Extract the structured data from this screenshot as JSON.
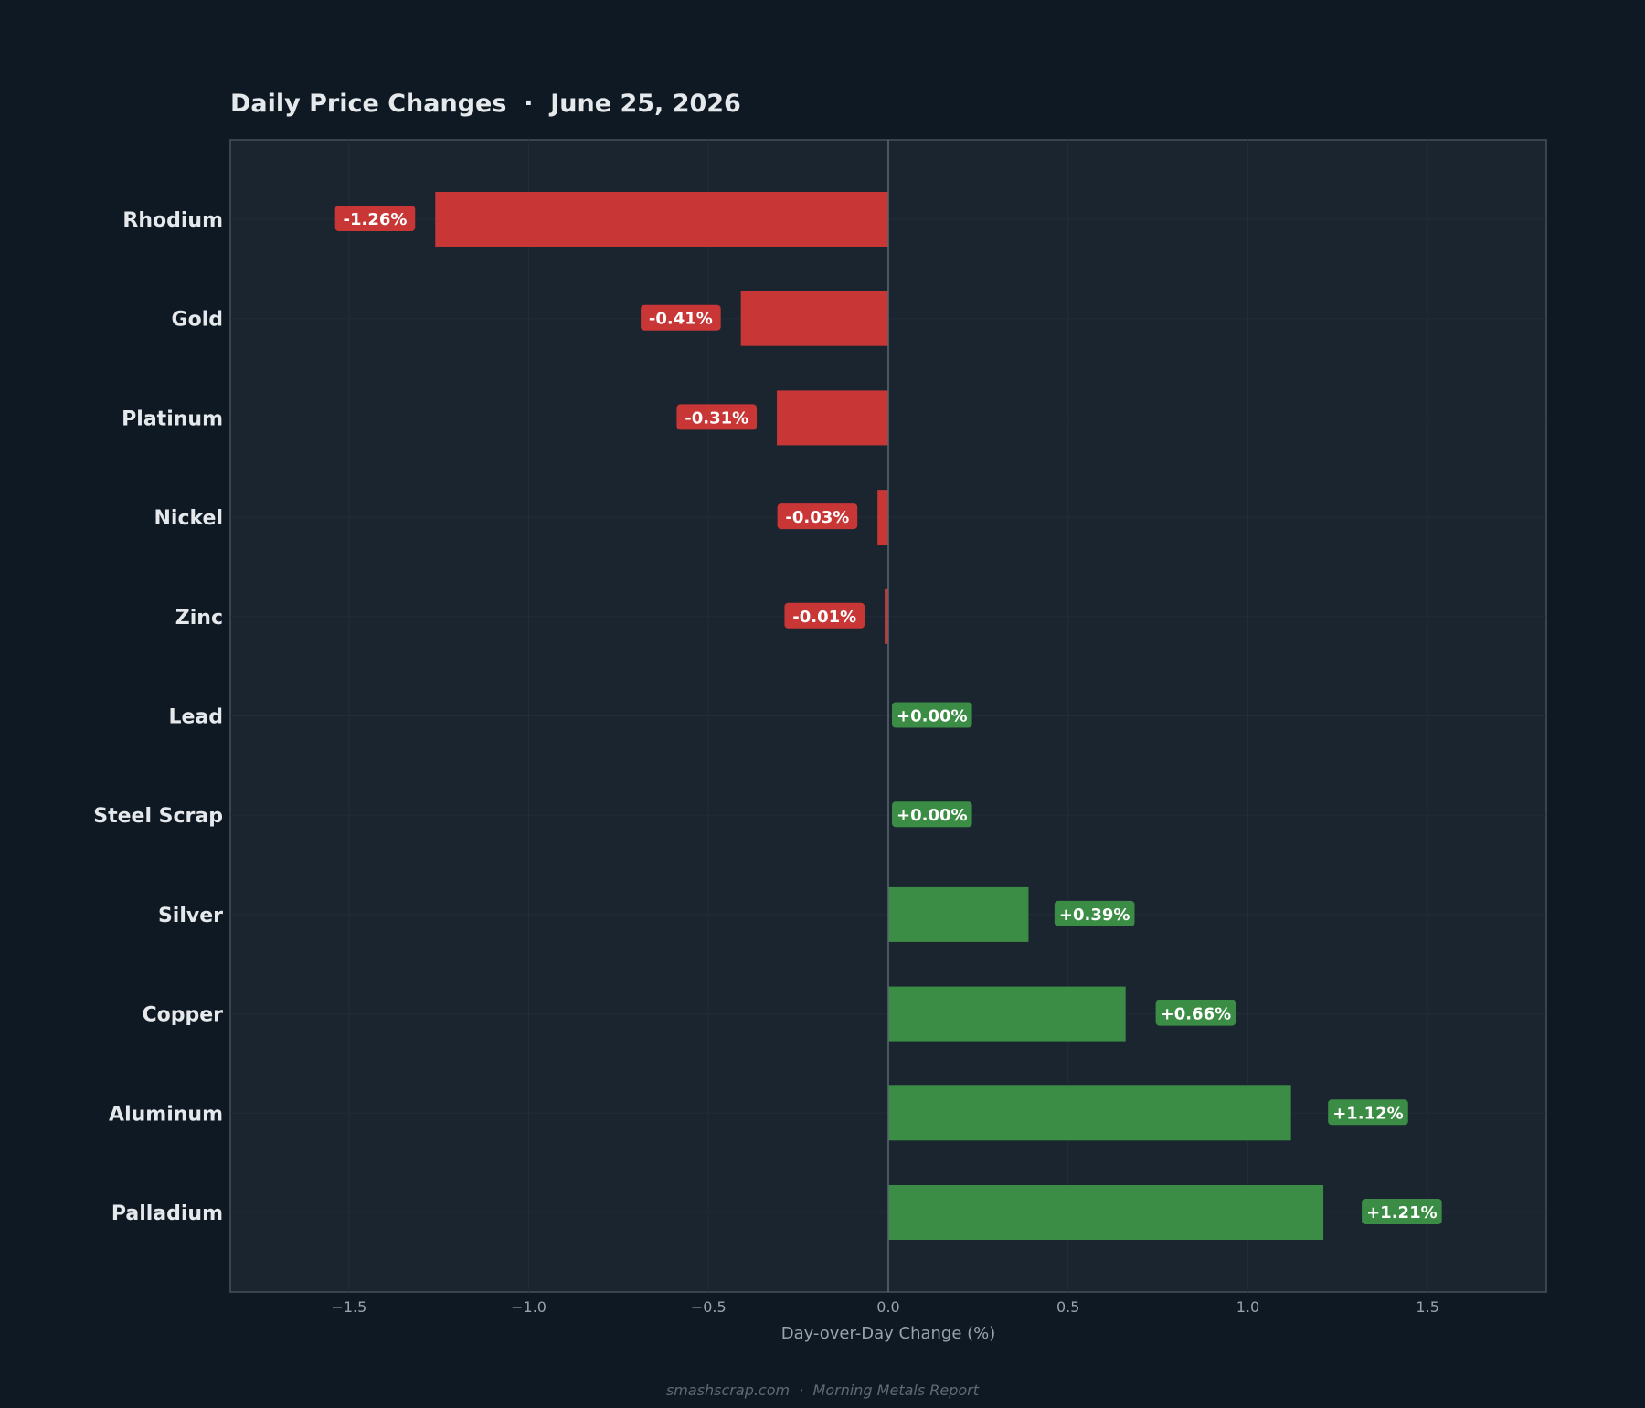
{
  "chart_data": {
    "type": "bar",
    "orientation": "horizontal",
    "title": "Daily Price Changes  ·  June 25, 2026",
    "xlabel": "Day-over-Day Change (%)",
    "ylabel": "",
    "xlim": [
      -1.83,
      1.83
    ],
    "xticks": [
      -1.5,
      -1.0,
      -0.5,
      0.0,
      0.5,
      1.0,
      1.5
    ],
    "xtick_labels": [
      "−1.5",
      "−1.0",
      "−0.5",
      "0.0",
      "0.5",
      "1.0",
      "1.5"
    ],
    "grid": true,
    "categories": [
      "Rhodium",
      "Gold",
      "Platinum",
      "Nickel",
      "Zinc",
      "Lead",
      "Steel Scrap",
      "Silver",
      "Copper",
      "Aluminum",
      "Palladium"
    ],
    "values": [
      -1.26,
      -0.41,
      -0.31,
      -0.03,
      -0.01,
      0.0,
      0.0,
      0.39,
      0.66,
      1.12,
      1.21
    ],
    "data_labels": [
      "-1.26%",
      "-0.41%",
      "-0.31%",
      "-0.03%",
      "-0.01%",
      "+0.00%",
      "+0.00%",
      "+0.39%",
      "+0.66%",
      "+1.12%",
      "+1.21%"
    ],
    "footer": "smashscrap.com  ·  Morning Metals Report"
  },
  "colors": {
    "page_background": "#0f1923",
    "plot_background": "#1b2530",
    "negative": "#c83636",
    "positive": "#3b8c44",
    "text": "#e6e9ec",
    "tick_text": "#9aa3ad",
    "footer_text": "#5f6a74"
  }
}
